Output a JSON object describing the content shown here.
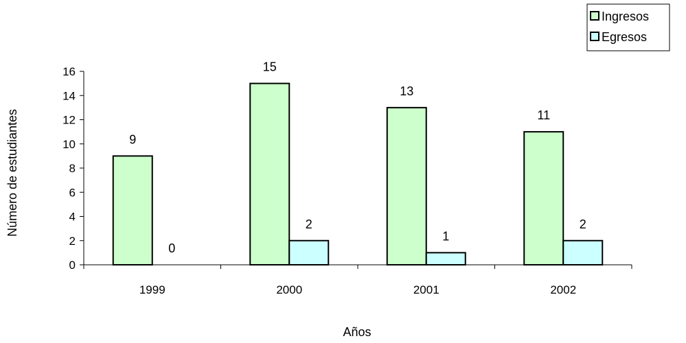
{
  "chart_data": {
    "type": "bar",
    "categories": [
      "1999",
      "2000",
      "2001",
      "2002"
    ],
    "series": [
      {
        "name": "Ingresos",
        "values": [
          9,
          15,
          13,
          11
        ],
        "color": "#ccffcc"
      },
      {
        "name": "Egresos",
        "values": [
          0,
          2,
          1,
          2
        ],
        "color": "#ccffff"
      }
    ],
    "xlabel": "Años",
    "ylabel": "Número de estudiantes",
    "ylim": [
      0,
      16
    ],
    "yticks": [
      "0",
      "2",
      "4",
      "6",
      "8",
      "10",
      "12",
      "14",
      "16"
    ],
    "grid": false,
    "legend_position": "top-right"
  }
}
